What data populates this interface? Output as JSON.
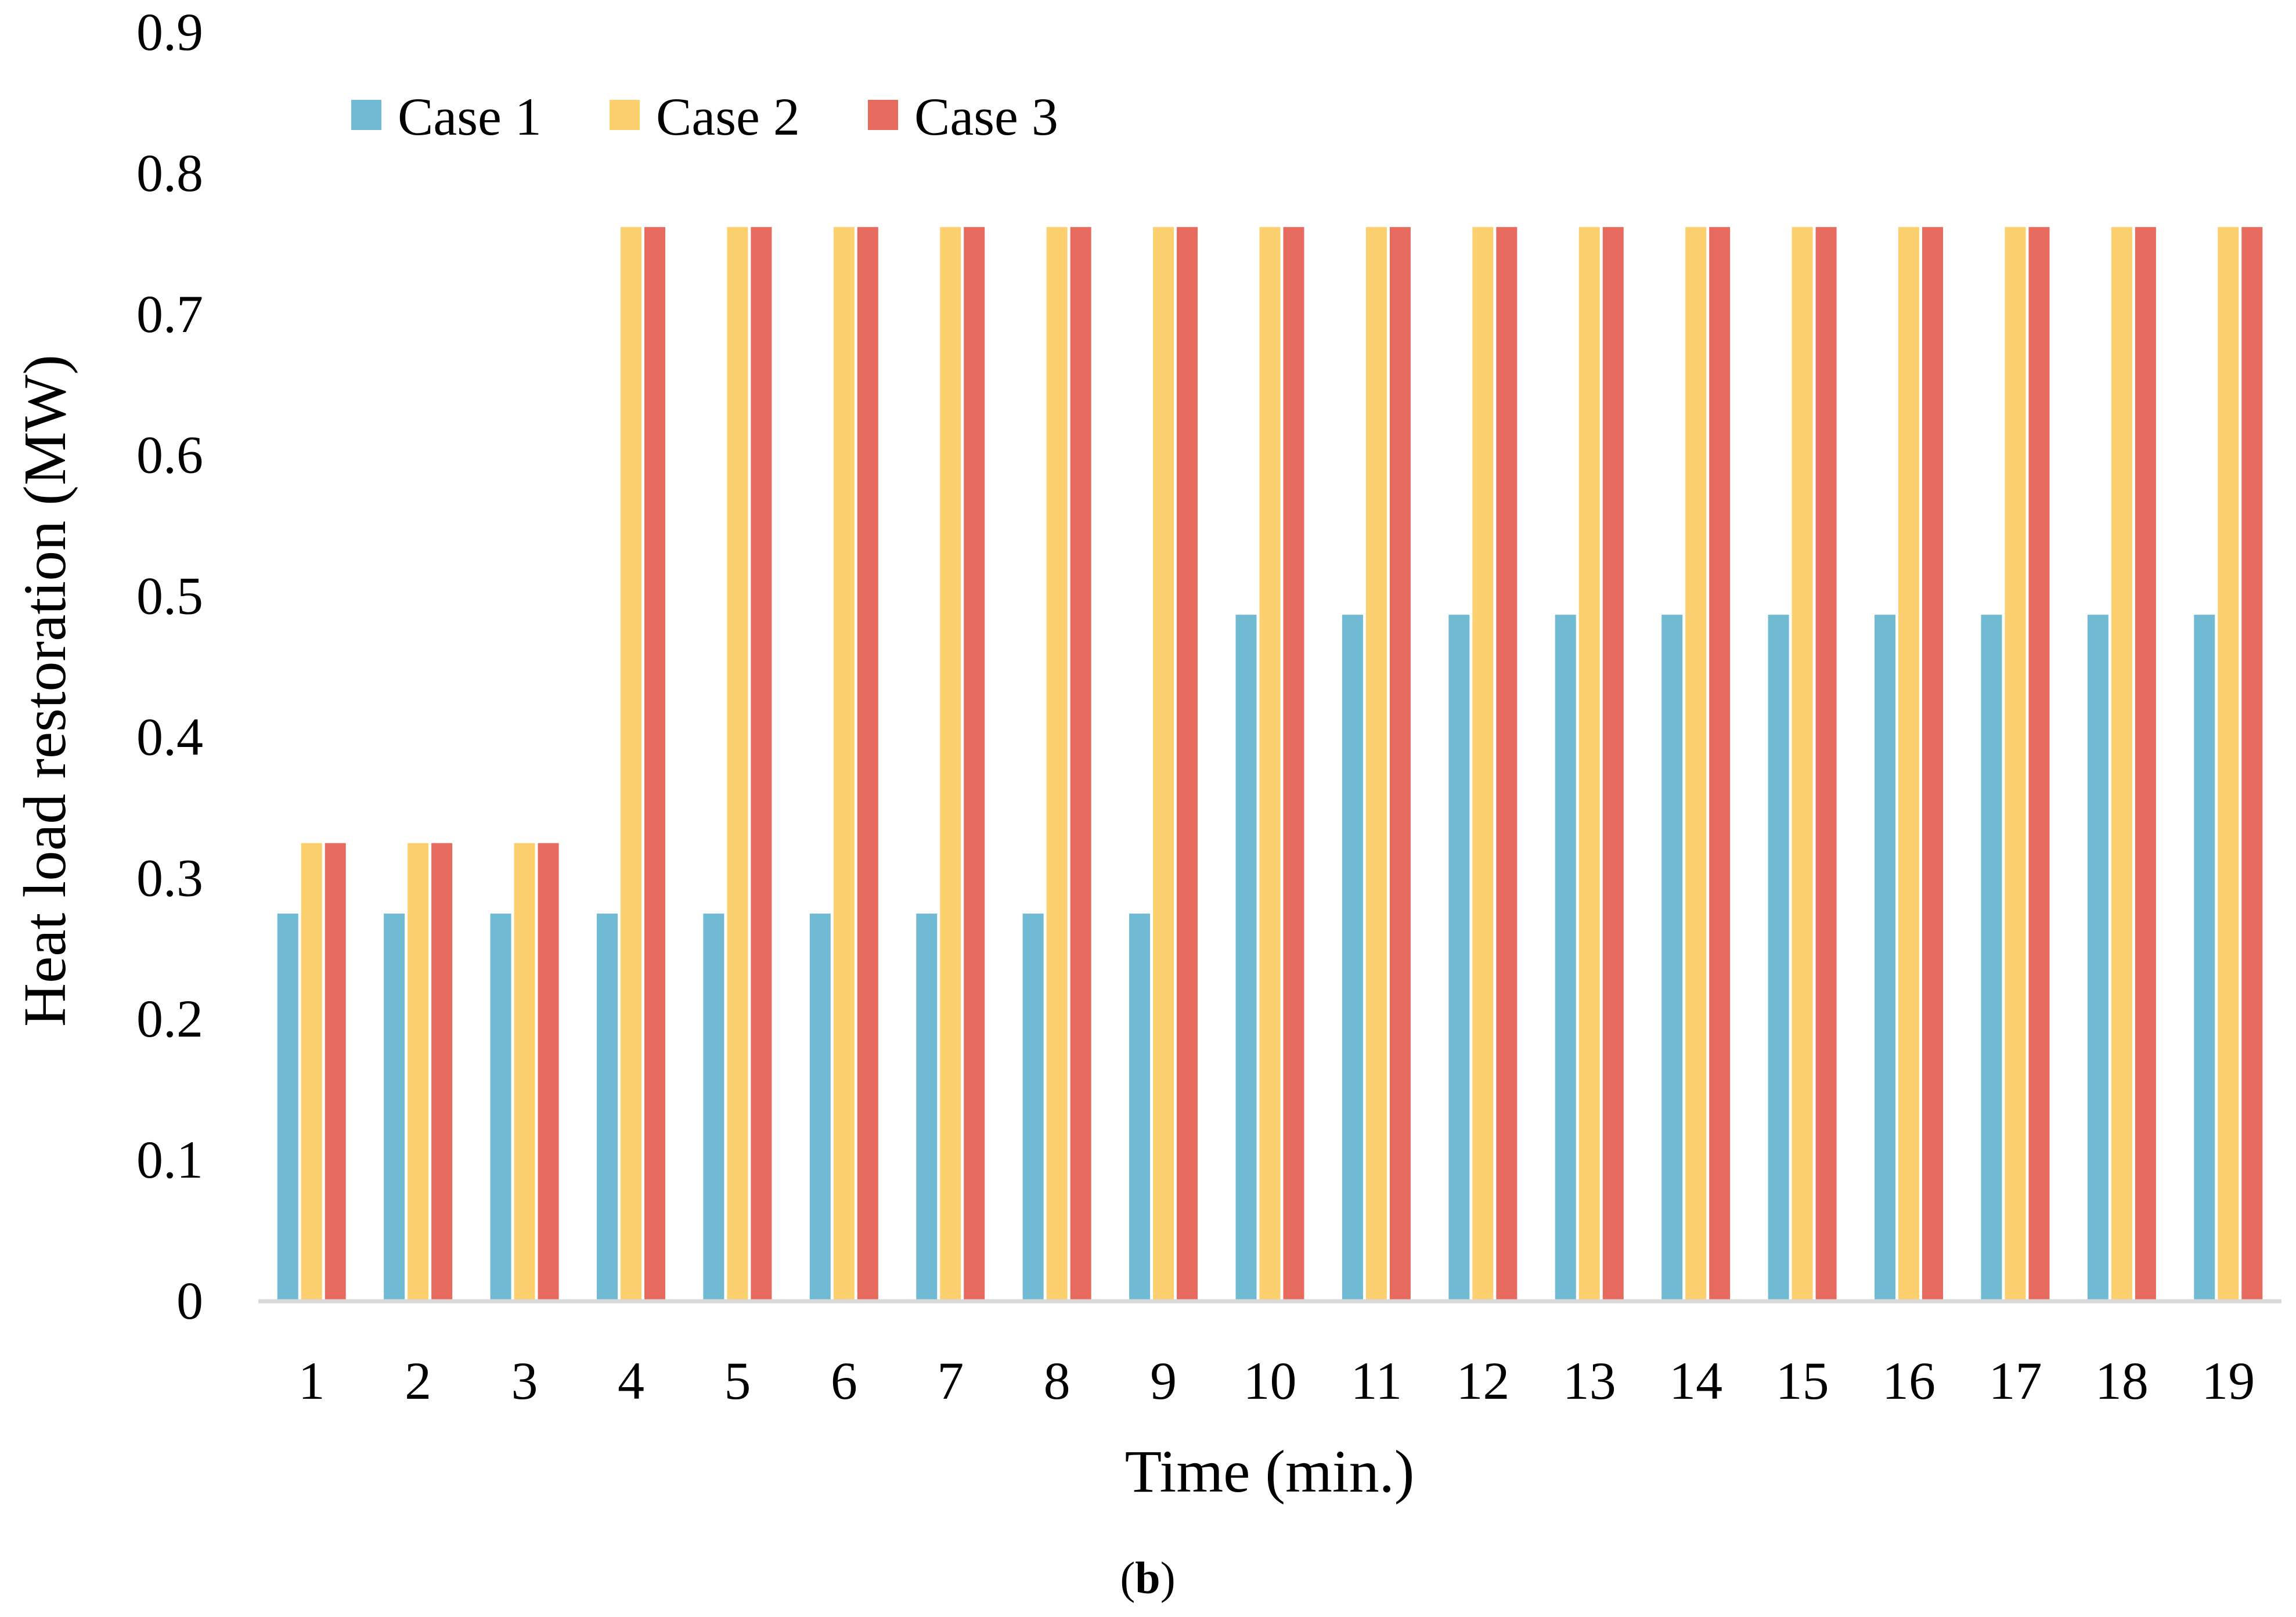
{
  "chart_data": {
    "type": "bar",
    "title": "",
    "xlabel": "Time (min.)",
    "ylabel": "Heat load restoration (MW)",
    "ylim": [
      0,
      0.9
    ],
    "yticks": [
      "0",
      "0.1",
      "0.2",
      "0.3",
      "0.4",
      "0.5",
      "0.6",
      "0.7",
      "0.8",
      "0.9"
    ],
    "categories": [
      "1",
      "2",
      "3",
      "4",
      "5",
      "6",
      "7",
      "8",
      "9",
      "10",
      "11",
      "12",
      "13",
      "14",
      "15",
      "16",
      "17",
      "18",
      "19"
    ],
    "series": [
      {
        "name": "Case 1",
        "color": "#70BBD3",
        "values": [
          0.275,
          0.275,
          0.275,
          0.275,
          0.275,
          0.275,
          0.275,
          0.275,
          0.275,
          0.487,
          0.487,
          0.487,
          0.487,
          0.487,
          0.487,
          0.487,
          0.487,
          0.487,
          0.487
        ]
      },
      {
        "name": "Case 2",
        "color": "#FCD06E",
        "values": [
          0.325,
          0.325,
          0.325,
          0.762,
          0.762,
          0.762,
          0.762,
          0.762,
          0.762,
          0.762,
          0.762,
          0.762,
          0.762,
          0.762,
          0.762,
          0.762,
          0.762,
          0.762,
          0.762
        ]
      },
      {
        "name": "Case 3",
        "color": "#E66A5D",
        "values": [
          0.325,
          0.325,
          0.325,
          0.762,
          0.762,
          0.762,
          0.762,
          0.762,
          0.762,
          0.762,
          0.762,
          0.762,
          0.762,
          0.762,
          0.762,
          0.762,
          0.762,
          0.762,
          0.762
        ]
      }
    ],
    "grid": false,
    "legend_position": "top-left",
    "caption_open": "(",
    "caption_letter": "b",
    "caption_close": ")"
  },
  "colors": {
    "axis": "#D9D9D9",
    "text": "#000000"
  }
}
